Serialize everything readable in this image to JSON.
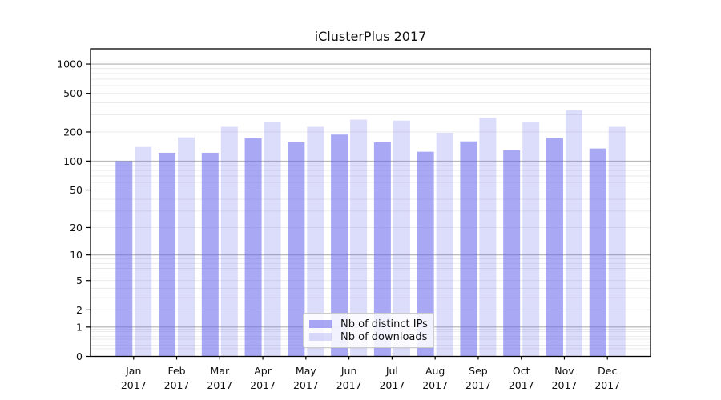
{
  "figure": {
    "title": "iClusterPlus 2017"
  },
  "chart_data": {
    "type": "bar",
    "title": "iClusterPlus 2017",
    "categories": [
      "Jan",
      "Feb",
      "Mar",
      "Apr",
      "May",
      "Jun",
      "Jul",
      "Aug",
      "Sep",
      "Oct",
      "Nov",
      "Dec"
    ],
    "category_year": "2017",
    "series": [
      {
        "name": "Nb of distinct IPs",
        "fill": "rgba(100,100,235,0.56)",
        "values": [
          100,
          122,
          122,
          172,
          156,
          188,
          156,
          125,
          160,
          129,
          174,
          135
        ]
      },
      {
        "name": "Nb of downloads",
        "fill": "rgba(110,110,240,0.24)",
        "values": [
          140,
          176,
          226,
          256,
          226,
          268,
          262,
          196,
          280,
          255,
          335,
          226
        ]
      }
    ],
    "yscale": "log1p",
    "yticks": [
      0,
      1,
      2,
      5,
      10,
      20,
      50,
      100,
      200,
      500,
      1000
    ],
    "ylim": [
      0,
      1480
    ],
    "grid": "both",
    "grid_major_color": "#b0b0b0",
    "grid_minor_color": "#e9e9e9",
    "axis_color": "#000000",
    "tick_label_color": "#111111",
    "legend_position": "lower center"
  }
}
